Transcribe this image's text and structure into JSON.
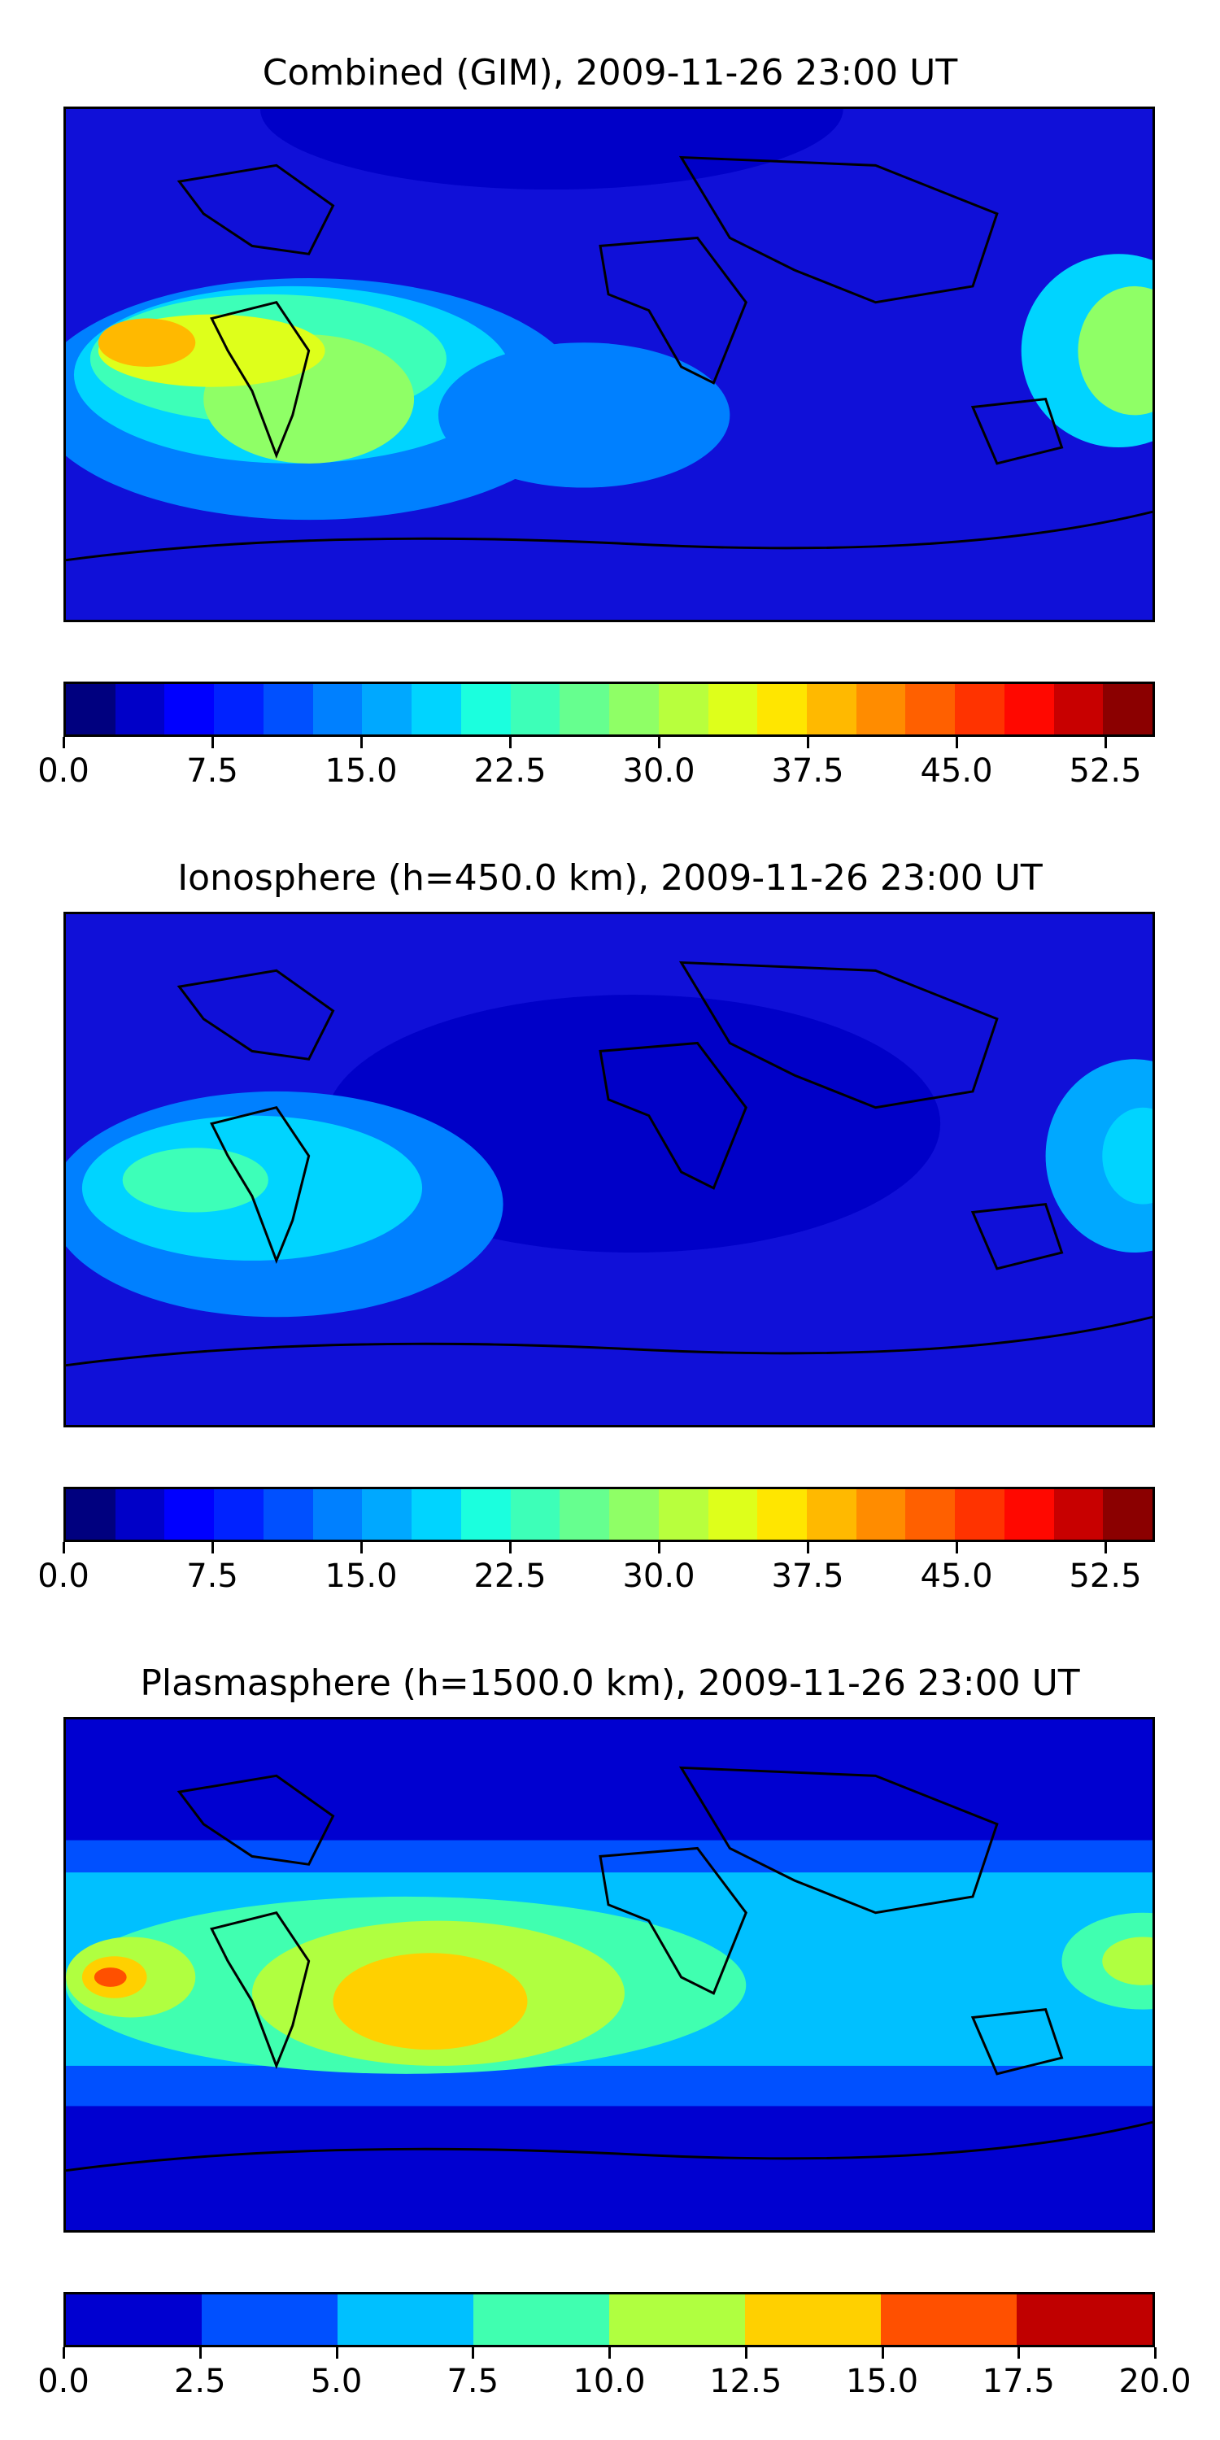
{
  "chart_data": [
    {
      "type": "heatmap",
      "title": "Combined (GIM), 2009-11-26 23:00 UT",
      "description_kind": "global contour map",
      "colorbar": {
        "levels": [
          0.0,
          2.5,
          5.0,
          7.5,
          10.0,
          12.5,
          15.0,
          17.5,
          20.0,
          22.5,
          25.0,
          27.5,
          30.0,
          32.5,
          35.0,
          37.5,
          40.0,
          42.5,
          45.0,
          47.5,
          50.0,
          52.5,
          55.0
        ],
        "tick_labels": [
          "0.0",
          "7.5",
          "15.0",
          "22.5",
          "30.0",
          "37.5",
          "45.0",
          "52.5"
        ],
        "tick_values": [
          0.0,
          7.5,
          15.0,
          22.5,
          30.0,
          37.5,
          45.0,
          52.5
        ],
        "colors": [
          "#00007f",
          "#0000c8",
          "#0000ff",
          "#0022ff",
          "#0050ff",
          "#0080ff",
          "#00a8ff",
          "#00d4ff",
          "#1bffde",
          "#3dffb8",
          "#66ff8f",
          "#8fff66",
          "#b8ff3d",
          "#deff1b",
          "#ffe600",
          "#ffb900",
          "#ff8c00",
          "#ff6000",
          "#ff3300",
          "#ff0800",
          "#c80000",
          "#8b0000"
        ]
      }
    },
    {
      "type": "heatmap",
      "title": "Ionosphere  (h=450.0 km), 2009-11-26 23:00 UT",
      "description_kind": "global contour map",
      "colorbar": {
        "levels": [
          0.0,
          2.5,
          5.0,
          7.5,
          10.0,
          12.5,
          15.0,
          17.5,
          20.0,
          22.5,
          25.0,
          27.5,
          30.0,
          32.5,
          35.0,
          37.5,
          40.0,
          42.5,
          45.0,
          47.5,
          50.0,
          52.5,
          55.0
        ],
        "tick_labels": [
          "0.0",
          "7.5",
          "15.0",
          "22.5",
          "30.0",
          "37.5",
          "45.0",
          "52.5"
        ],
        "tick_values": [
          0.0,
          7.5,
          15.0,
          22.5,
          30.0,
          37.5,
          45.0,
          52.5
        ],
        "colors": [
          "#00007f",
          "#0000c8",
          "#0000ff",
          "#0022ff",
          "#0050ff",
          "#0080ff",
          "#00a8ff",
          "#00d4ff",
          "#1bffde",
          "#3dffb8",
          "#66ff8f",
          "#8fff66",
          "#b8ff3d",
          "#deff1b",
          "#ffe600",
          "#ffb900",
          "#ff8c00",
          "#ff6000",
          "#ff3300",
          "#ff0800",
          "#c80000",
          "#8b0000"
        ]
      }
    },
    {
      "type": "heatmap",
      "title": "Plasmasphere (h=1500.0 km), 2009-11-26 23:00 UT",
      "description_kind": "global contour map",
      "colorbar": {
        "levels": [
          0.0,
          2.5,
          5.0,
          7.5,
          10.0,
          12.5,
          15.0,
          17.5,
          20.0
        ],
        "tick_labels": [
          "0.0",
          "2.5",
          "5.0",
          "7.5",
          "10.0",
          "12.5",
          "15.0",
          "17.5",
          "20.0"
        ],
        "tick_values": [
          0.0,
          2.5,
          5.0,
          7.5,
          10.0,
          12.5,
          15.0,
          17.5,
          20.0
        ],
        "colors": [
          "#0000d0",
          "#0050ff",
          "#00c0ff",
          "#40ffb0",
          "#b0ff40",
          "#ffd000",
          "#ff5000",
          "#c00000"
        ]
      }
    }
  ]
}
